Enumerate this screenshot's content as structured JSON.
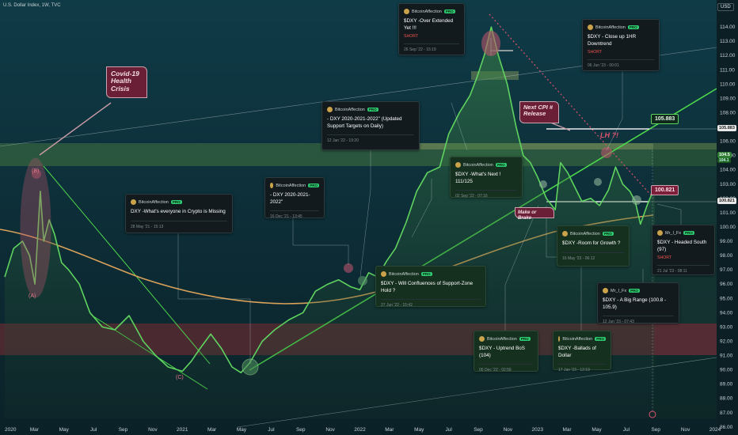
{
  "header": {
    "symbol": "U.S. Dollar Index, 1W, TVC",
    "currency": "USD"
  },
  "colors": {
    "background": "#0e2a33",
    "price_line": "#5fd35f",
    "ma_line": "#d9a15a",
    "support_zone": "#2f5d3f",
    "red_zone": "#5a2a32",
    "callout": "#6b1f36",
    "up_trend": "#4cd64c"
  },
  "chart_data": {
    "type": "line",
    "ylim": [
      86.6,
      115.5
    ],
    "y_ticks": [
      "114.00",
      "113.00",
      "112.00",
      "111.00",
      "110.00",
      "109.00",
      "108.00",
      "107.00",
      "106.00",
      "105.00",
      "104.00",
      "103.00",
      "102.00",
      "101.00",
      "100.00",
      "99.00",
      "98.00",
      "97.00",
      "96.00",
      "95.00",
      "94.00",
      "93.00",
      "92.00",
      "91.00",
      "90.00",
      "89.00",
      "88.00",
      "87.00",
      "86.00"
    ],
    "x_ticks": [
      "2020",
      "Mar",
      "May",
      "Jul",
      "Sep",
      "Nov",
      "2021",
      "Mar",
      "May",
      "Jul",
      "Sep",
      "Nov",
      "2022",
      "Mar",
      "May",
      "Jul",
      "Sep",
      "Nov",
      "2023",
      "Mar",
      "May",
      "Jul",
      "Sep",
      "Nov",
      "2024"
    ],
    "series": [
      {
        "x": [
          2020.0,
          2020.05,
          2020.1,
          2020.14,
          2020.17,
          2020.2,
          2020.22,
          2020.25,
          2020.28,
          2020.32,
          2020.36,
          2020.42,
          2020.48,
          2020.55,
          2020.62,
          2020.7,
          2020.78,
          2020.85,
          2020.92,
          2021.0,
          2021.05,
          2021.1,
          2021.16,
          2021.22,
          2021.28,
          2021.33,
          2021.38,
          2021.45,
          2021.52,
          2021.6,
          2021.68,
          2021.75,
          2021.82,
          2021.88,
          2021.95,
          2022.0,
          2022.05,
          2022.1,
          2022.15,
          2022.2,
          2022.26,
          2022.32,
          2022.38,
          2022.45,
          2022.5,
          2022.56,
          2022.62,
          2022.66,
          2022.7,
          2022.74,
          2022.78,
          2022.83,
          2022.88,
          2022.92,
          2022.96,
          2023.0,
          2023.05,
          2023.1,
          2023.13,
          2023.17,
          2023.21,
          2023.25,
          2023.3,
          2023.35,
          2023.4,
          2023.44,
          2023.48,
          2023.52,
          2023.55,
          2023.58,
          2023.62,
          2023.66
        ],
        "y": [
          96.5,
          98.5,
          99.0,
          98.0,
          96.0,
          102.5,
          99.0,
          100.5,
          99.5,
          97.5,
          97.0,
          96.0,
          94.0,
          93.0,
          92.8,
          93.8,
          92.0,
          91.0,
          90.2,
          89.9,
          90.6,
          91.5,
          92.5,
          91.5,
          90.2,
          89.8,
          90.5,
          92.0,
          92.8,
          93.5,
          94.0,
          95.5,
          96.0,
          96.3,
          95.8,
          95.6,
          96.8,
          96.5,
          97.6,
          98.5,
          100.3,
          102.5,
          103.8,
          104.2,
          106.5,
          108.0,
          109.2,
          110.5,
          112.0,
          114.0,
          112.0,
          110.0,
          107.0,
          105.0,
          104.5,
          103.5,
          102.0,
          101.2,
          104.5,
          103.8,
          102.8,
          101.8,
          102.0,
          101.5,
          102.6,
          104.2,
          103.0,
          102.5,
          101.8,
          100.2,
          101.6,
          102.8
        ]
      }
    ],
    "annotations": [
      {
        "text": "Covid-19 Health Crisis"
      },
      {
        "text": "Next CPI # Release"
      },
      {
        "text": "Make or Brake"
      },
      {
        "text": "LH ?!"
      },
      {
        "text": "(B)"
      },
      {
        "text": "(A)"
      },
      {
        "text": "(C)"
      }
    ],
    "levels": {
      "upper": "105.883",
      "lower": "100.821"
    },
    "price_scale_labels": {
      "right_a": "105.883",
      "right_b": "100.821",
      "current_a": "104.5",
      "current_b": "104.1"
    }
  },
  "ideas": [
    {
      "author": "BitcoinAffection",
      "badge": "PRO",
      "title": "$DXY -Over Extended Yet !!!",
      "direction": "SHORT",
      "time": "26 Sep '22 - 15:19"
    },
    {
      "author": "BitcoinAffection",
      "badge": "PRO",
      "title": "$DXY - Close up 1HR Downtrend",
      "direction": "SHORT",
      "time": "06 Jun '23 - 00:01"
    },
    {
      "author": "BitcoinAffection",
      "badge": "PRO",
      "title": "- DXY  2020-2021-2022\" (Updated Support Targets on Daily)",
      "direction": "",
      "time": "12 Jan '22 - 19:20"
    },
    {
      "author": "BitcoinAffection",
      "badge": "PRO",
      "title": "- DXY  2020-2021-2022\"",
      "direction": "",
      "time": "16 Dec '21 - 13:45"
    },
    {
      "author": "BitcoinAffection",
      "badge": "PRO",
      "title": "DXY        -What's everyone in Crypto is Missing",
      "direction": "",
      "time": "28 May '21 - 15:13"
    },
    {
      "author": "BitcoinAffection",
      "badge": "PRO",
      "title": "$DXY -What's Next ! 111/125",
      "direction": "",
      "time": "02 Sep '22 - 07:16"
    },
    {
      "author": "BitcoinAffection",
      "badge": "PRO",
      "title": "$DXY - Will Confluences of Support-Zone Hold ?",
      "direction": "",
      "time": "27 Jun '22 - 15:42"
    },
    {
      "author": "BitcoinAffection",
      "badge": "PRO",
      "title": "$DXY -Room for Growth ?",
      "direction": "",
      "time": "16 May '23 - 06:12"
    },
    {
      "author": "Mr_I_Fx",
      "badge": "PRO",
      "title": "$DXY - Headed South (97)",
      "direction": "SHORT",
      "time": "21 Jul '23 - 08:11"
    },
    {
      "author": "Mr_I_Fx",
      "badge": "PRO",
      "title": "$DXY - A Big Range (100.8 - 105.9)",
      "direction": "",
      "time": "12 Jun '23 - 07:43"
    },
    {
      "author": "BitcoinAffection",
      "badge": "PRO",
      "title": "$DXY - Uptrend BoS (104)",
      "direction": "",
      "time": "05 Dec '22 - 02:56"
    },
    {
      "author": "BitcoinAffection",
      "badge": "PRO",
      "title": "$DXY -Ballads of Dollar",
      "direction": "",
      "time": "17 Jan '23 - 12:19"
    }
  ]
}
